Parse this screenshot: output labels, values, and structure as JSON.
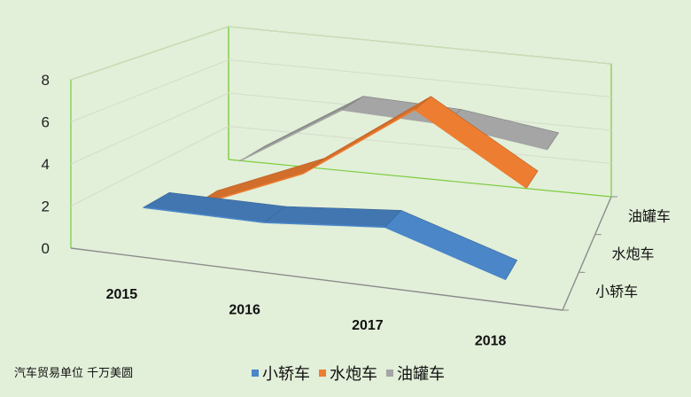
{
  "chart_data": {
    "type": "line",
    "variant": "3d-line",
    "categories": [
      "2015",
      "2016",
      "2017",
      "2018"
    ],
    "series": [
      {
        "name": "小轿车",
        "color": "#4a86c8",
        "values": [
          2.0,
          2.0,
          2.5,
          0.7
        ]
      },
      {
        "name": "水炮车",
        "color": "#ed7d31",
        "values": [
          0.6,
          3.0,
          7.0,
          3.6
        ]
      },
      {
        "name": "油罐车",
        "color": "#a5a5a5",
        "values": [
          1.5,
          5.0,
          4.8,
          4.0
        ]
      }
    ],
    "y_ticks": [
      "0",
      "2",
      "4",
      "6",
      "8"
    ],
    "ylim": [
      0,
      8
    ],
    "grid": true,
    "legend_position": "bottom"
  },
  "note": "汽车贸易单位 千万美圆"
}
